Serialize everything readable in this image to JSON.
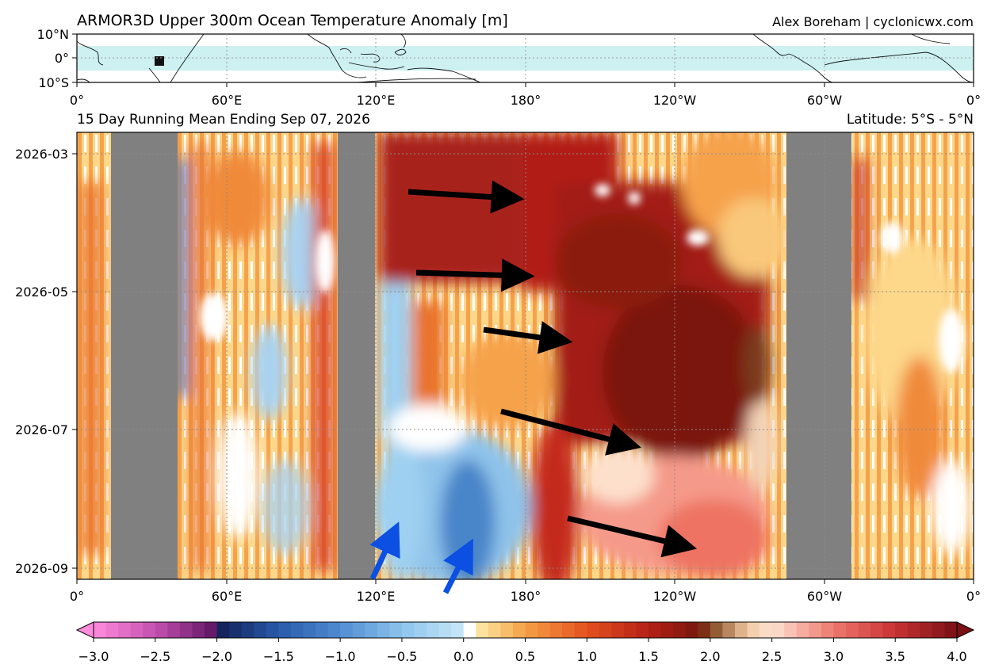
{
  "header": {
    "title": "ARMOR3D Upper 300m Ocean Temperature Anomaly [m]",
    "credit": "Alex Boreham | cyclonicwx.com"
  },
  "map": {
    "lat_ticks": [
      "10°N",
      "0°",
      "10°S"
    ],
    "lon_ticks": [
      "0°",
      "60°E",
      "120°E",
      "180°",
      "120°W",
      "60°W",
      "0°"
    ]
  },
  "hovmoller": {
    "subtitle_left": "15 Day Running Mean Ending Sep 07, 2026",
    "subtitle_right": "Latitude: 5°S - 5°N",
    "lon_ticks": [
      "0°",
      "60°E",
      "120°E",
      "180°",
      "120°W",
      "60°W",
      "0°"
    ],
    "time_ticks": [
      "2026-03",
      "2026-05",
      "2026-07",
      "2026-09"
    ]
  },
  "colorbar": {
    "tick_labels": [
      "−3.0",
      "−2.5",
      "−2.0",
      "−1.5",
      "−1.0",
      "−0.5",
      "0.0",
      "0.5",
      "1.0",
      "1.5",
      "2.0",
      "2.5",
      "3.0",
      "3.5",
      "4.0"
    ]
  },
  "colors": {
    "land_mask": "#808080",
    "neutral": "#ffffff",
    "warm_dark": "#8b1a0e",
    "warm_mid": "#d33a1b",
    "warm_light": "#fdd78a",
    "cool_light": "#a8d4f2",
    "cool_dark": "#2f6cc0",
    "arrow_black": "#000000",
    "arrow_blue": "#0b4fe3"
  },
  "chart_data": {
    "type": "heatmap",
    "title": "ARMOR3D Upper 300m Ocean Temperature Anomaly [m]",
    "subtitle": "15 Day Running Mean Ending Sep 07, 2026",
    "x_axis": {
      "ticks": [
        "0°",
        "60°E",
        "120°E",
        "180°",
        "120°W",
        "60°W",
        "0°"
      ],
      "range_deg_east": [
        0,
        360
      ]
    },
    "y_axis": {
      "ticks": [
        "2026-03",
        "2026-05",
        "2026-07",
        "2026-09"
      ],
      "range": [
        "2026-02-20",
        "2026-09-07"
      ]
    },
    "latitude_band": "5°S - 5°N",
    "colorbar": {
      "min": -3.0,
      "max": 4.0,
      "step": 0.1,
      "ticks": [
        -3.0,
        -2.5,
        -2.0,
        -1.5,
        -1.0,
        -0.5,
        0.0,
        0.5,
        1.0,
        1.5,
        2.0,
        2.5,
        3.0,
        3.5,
        4.0
      ]
    },
    "land_bands_deg_east": [
      [
        13,
        40
      ],
      [
        105,
        120
      ],
      [
        285,
        311
      ]
    ],
    "annotations": [
      {
        "type": "arrow",
        "color": "black",
        "from": [
          "134E",
          "2026-03-18"
        ],
        "to": [
          "180",
          "2026-03-20"
        ]
      },
      {
        "type": "arrow",
        "color": "black",
        "from": [
          "137E",
          "2026-04-24"
        ],
        "to": [
          "183E",
          "2026-04-25"
        ]
      },
      {
        "type": "arrow",
        "color": "black",
        "from": [
          "164E",
          "2026-05-16"
        ],
        "to": [
          "160W",
          "2026-05-20"
        ]
      },
      {
        "type": "arrow",
        "color": "black",
        "from": [
          "171E",
          "2026-06-24"
        ],
        "to": [
          "147W",
          "2026-07-07"
        ]
      },
      {
        "type": "arrow",
        "color": "black",
        "from": [
          "153W",
          "2026-08-22"
        ],
        "to": [
          "112W",
          "2026-08-31"
        ]
      },
      {
        "type": "arrow",
        "color": "blue",
        "from": [
          "118E",
          "2026-09-06"
        ],
        "to": [
          "130E",
          "2026-08-23"
        ]
      },
      {
        "type": "arrow",
        "color": "blue",
        "from": [
          "149E",
          "2026-09-10"
        ],
        "to": [
          "161E",
          "2026-08-26"
        ]
      }
    ]
  }
}
